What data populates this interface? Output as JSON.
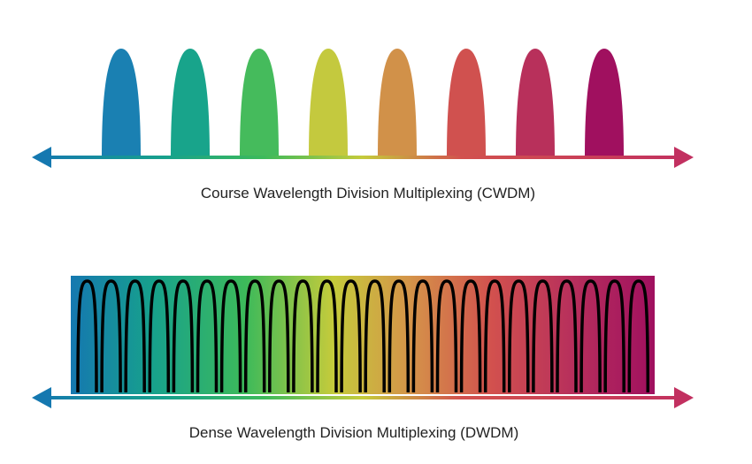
{
  "cwdm": {
    "caption": "Course Wavelength Division Multiplexing (CWDM)"
  },
  "dwdm": {
    "caption": "Dense Wavelength Division Multiplexing (DWDM)"
  }
}
